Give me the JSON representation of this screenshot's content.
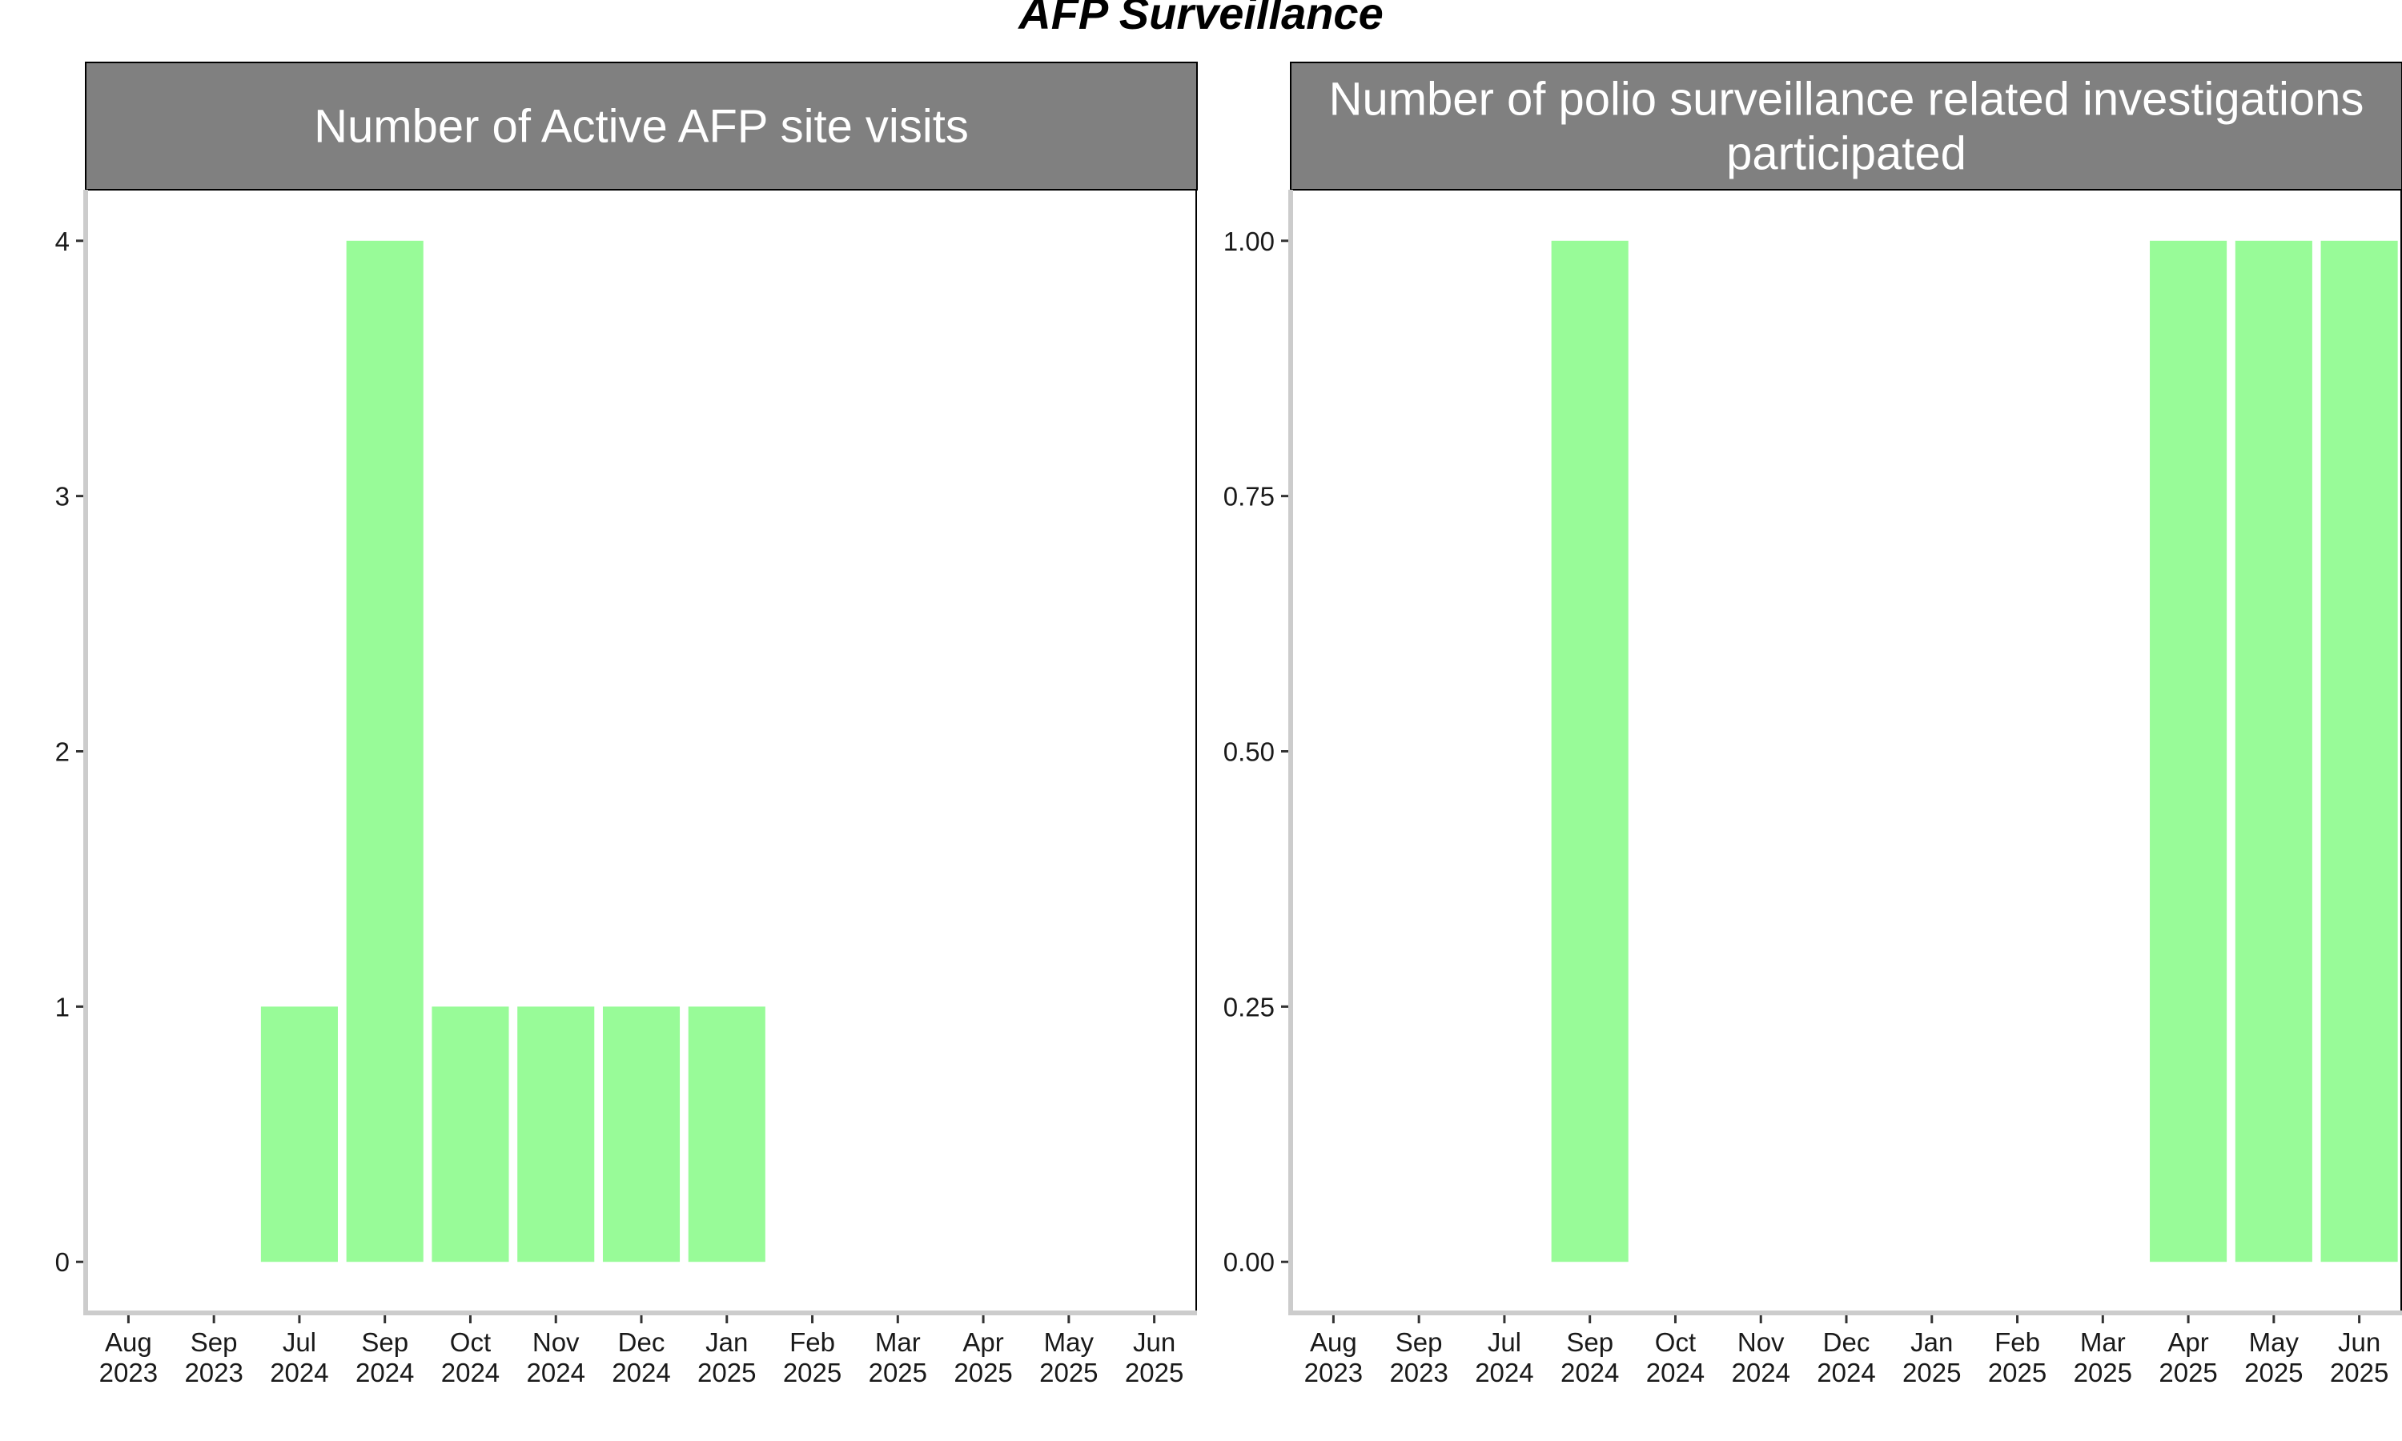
{
  "title": "AFP Surveillance",
  "colors": {
    "bar": "#98FB98",
    "strip_fill": "#808080",
    "strip_text": "#FFFFFF",
    "axis_line": "#CCCCCC",
    "panel_border": "#000000"
  },
  "chart_data": [
    {
      "type": "bar",
      "title": "Number of Active AFP site visits",
      "title_lines": [
        "Number of Active AFP site visits"
      ],
      "xlabel": "",
      "ylabel": "",
      "categories": [
        "Aug 2023",
        "Sep 2023",
        "Jul 2024",
        "Sep 2024",
        "Oct 2024",
        "Nov 2024",
        "Dec 2024",
        "Jan 2025",
        "Feb 2025",
        "Mar 2025",
        "Apr 2025",
        "May 2025",
        "Jun 2025"
      ],
      "category_labels": [
        [
          "Aug",
          "2023"
        ],
        [
          "Sep",
          "2023"
        ],
        [
          "Jul",
          "2024"
        ],
        [
          "Sep",
          "2024"
        ],
        [
          "Oct",
          "2024"
        ],
        [
          "Nov",
          "2024"
        ],
        [
          "Dec",
          "2024"
        ],
        [
          "Jan",
          "2025"
        ],
        [
          "Feb",
          "2025"
        ],
        [
          "Mar",
          "2025"
        ],
        [
          "Apr",
          "2025"
        ],
        [
          "May",
          "2025"
        ],
        [
          "Jun",
          "2025"
        ]
      ],
      "values": [
        null,
        null,
        1,
        4,
        1,
        1,
        1,
        1,
        null,
        null,
        null,
        null,
        null
      ],
      "ylim": [
        -0.2,
        4.2
      ],
      "yticks": [
        0,
        1,
        2,
        3,
        4
      ],
      "ytick_labels": [
        "0",
        "1",
        "2",
        "3",
        "4"
      ],
      "grid": false,
      "legend": "none"
    },
    {
      "type": "bar",
      "title": "Number of polio surveillance related investigations participated",
      "title_lines": [
        "Number of polio surveillance related investigations",
        "participated"
      ],
      "xlabel": "",
      "ylabel": "",
      "categories": [
        "Aug 2023",
        "Sep 2023",
        "Jul 2024",
        "Sep 2024",
        "Oct 2024",
        "Nov 2024",
        "Dec 2024",
        "Jan 2025",
        "Feb 2025",
        "Mar 2025",
        "Apr 2025",
        "May 2025",
        "Jun 2025"
      ],
      "category_labels": [
        [
          "Aug",
          "2023"
        ],
        [
          "Sep",
          "2023"
        ],
        [
          "Jul",
          "2024"
        ],
        [
          "Sep",
          "2024"
        ],
        [
          "Oct",
          "2024"
        ],
        [
          "Nov",
          "2024"
        ],
        [
          "Dec",
          "2024"
        ],
        [
          "Jan",
          "2025"
        ],
        [
          "Feb",
          "2025"
        ],
        [
          "Mar",
          "2025"
        ],
        [
          "Apr",
          "2025"
        ],
        [
          "May",
          "2025"
        ],
        [
          "Jun",
          "2025"
        ]
      ],
      "values": [
        null,
        null,
        null,
        1,
        null,
        null,
        null,
        null,
        null,
        null,
        1,
        1,
        1
      ],
      "ylim": [
        -0.05,
        1.05
      ],
      "yticks": [
        0,
        0.25,
        0.5,
        0.75,
        1
      ],
      "ytick_labels": [
        "0.00",
        "0.25",
        "0.50",
        "0.75",
        "1.00"
      ],
      "grid": false,
      "legend": "none"
    }
  ]
}
